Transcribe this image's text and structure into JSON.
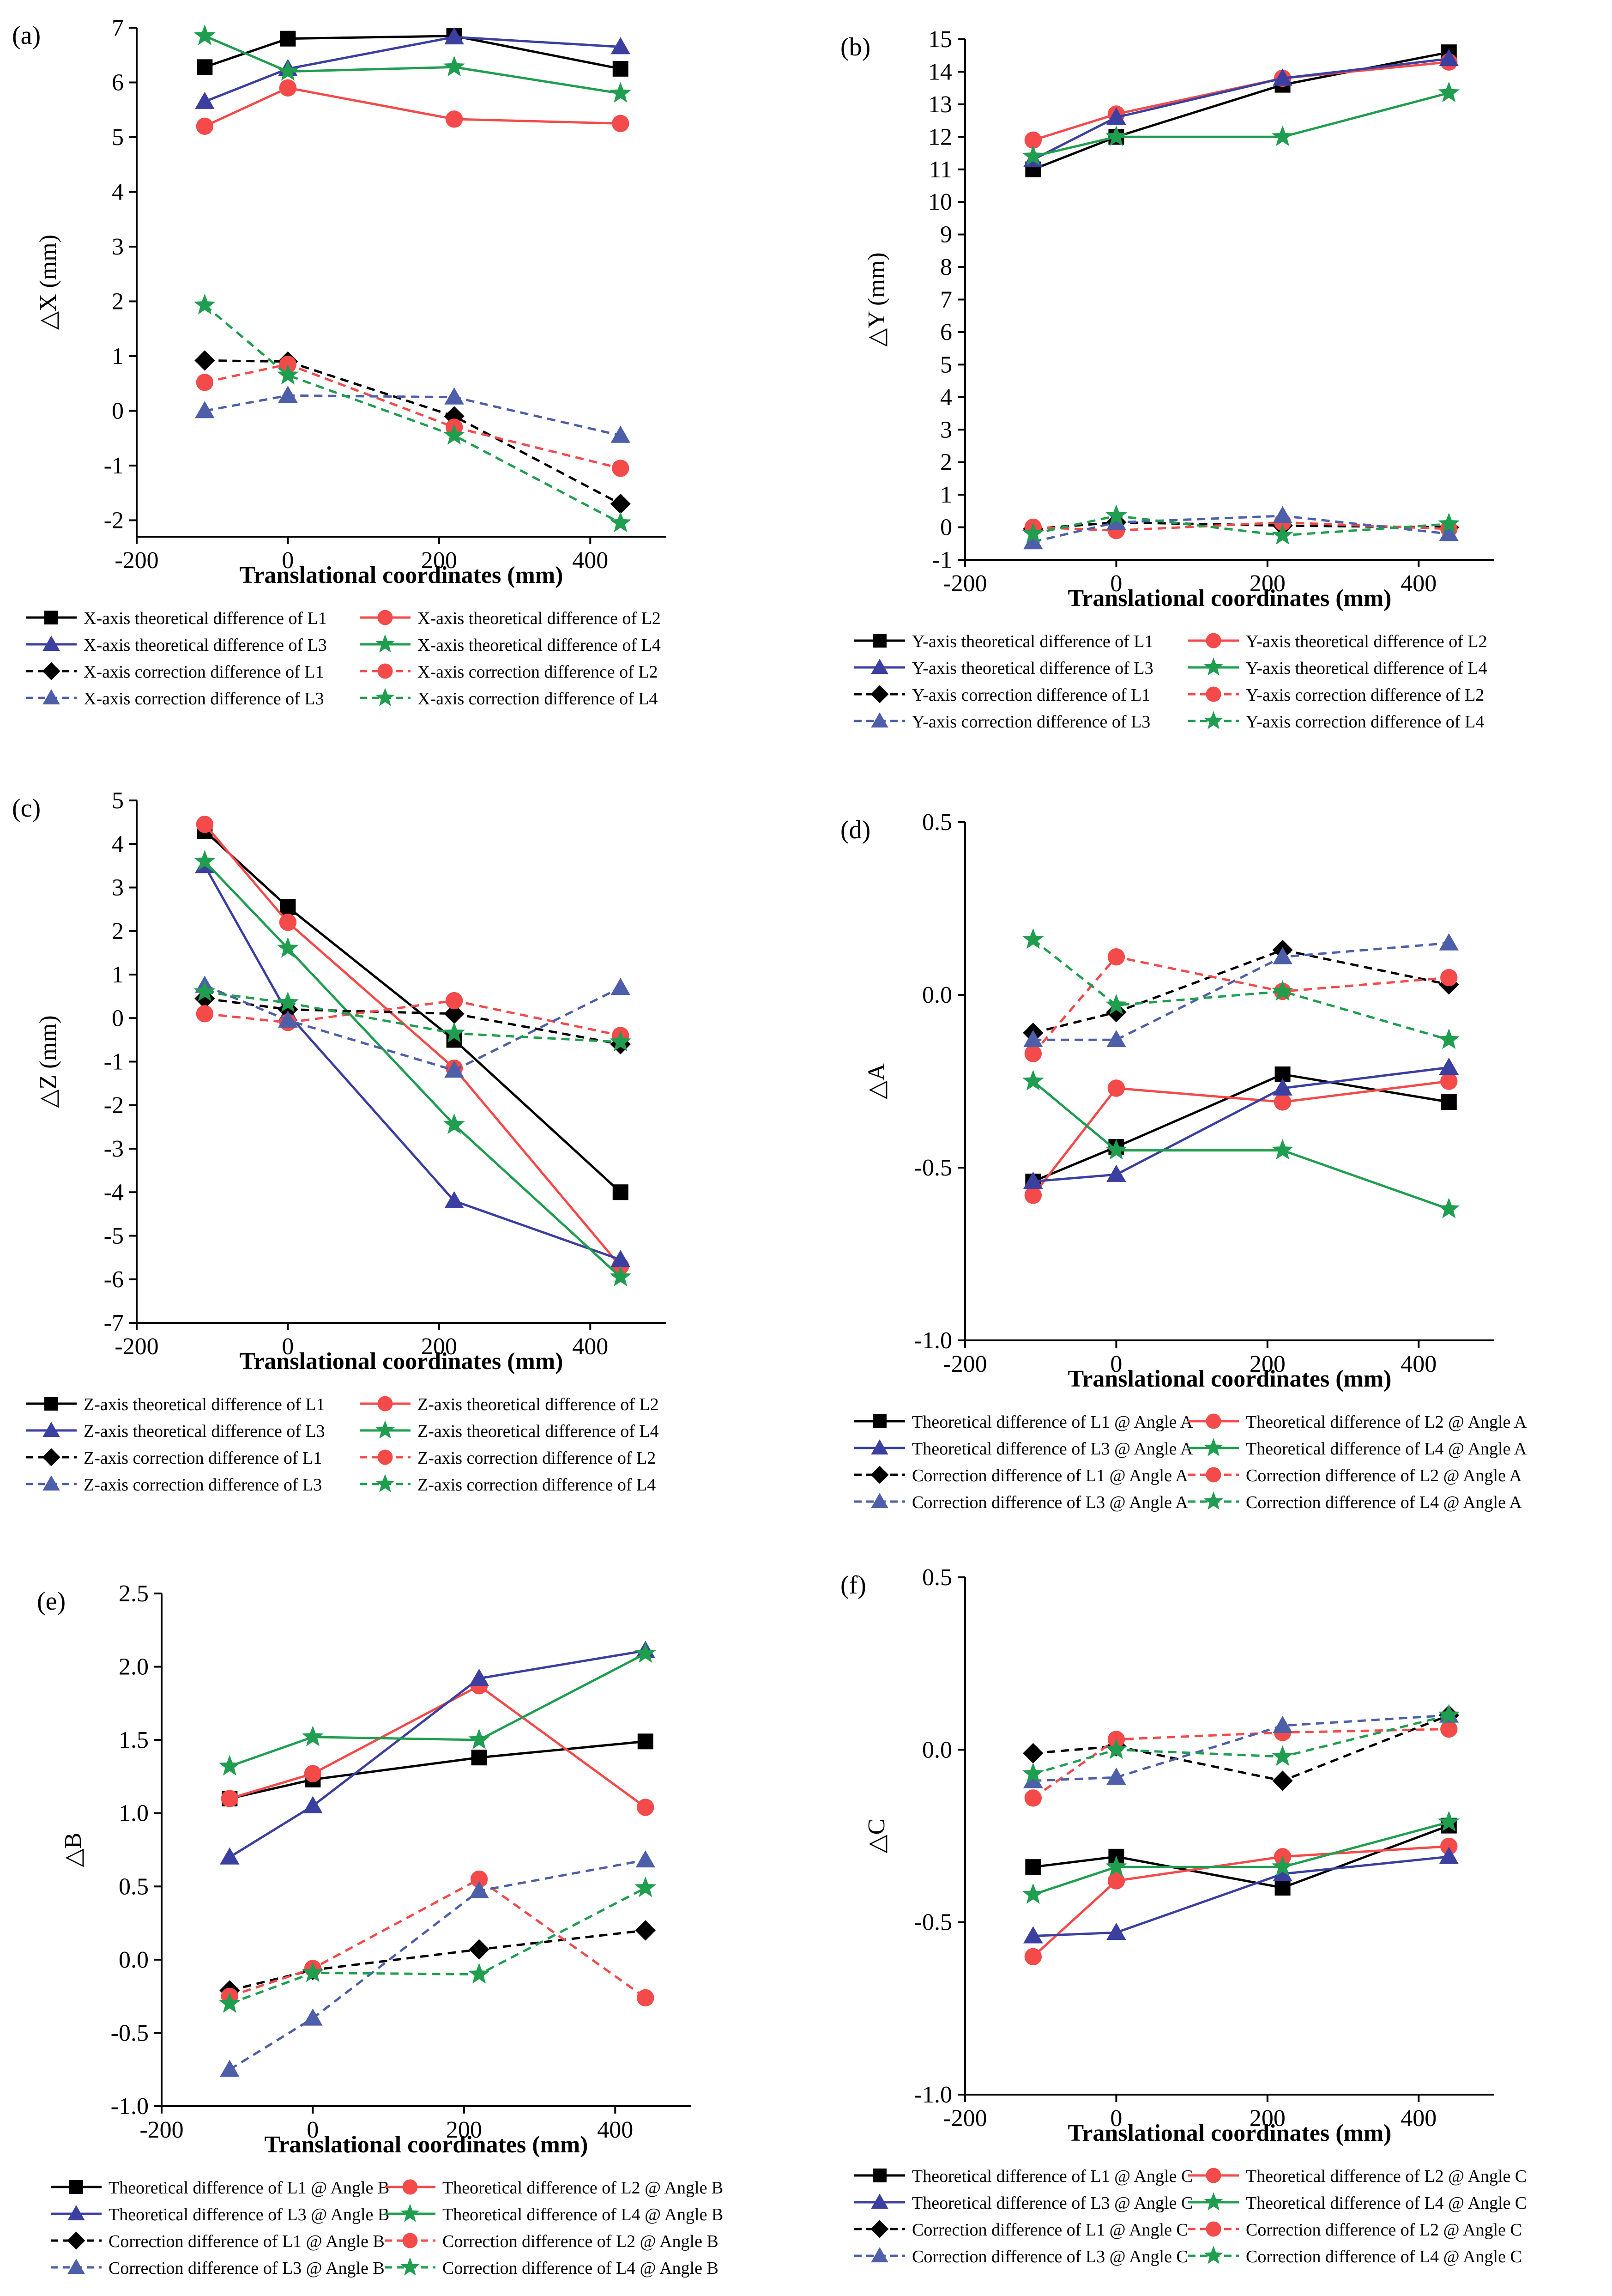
{
  "figure": {
    "style": {
      "black": "#000000",
      "red": "#f44a4a",
      "blue": "#3b3fa0",
      "green": "#1f9e4f",
      "dashed_blue": "#4d5fa8"
    },
    "x_values": [
      -110,
      0,
      220,
      440
    ]
  },
  "chart_data": [
    {
      "type": "line",
      "panel_label": "(a)",
      "xlabel": "Translational coordinates (mm)",
      "ylabel": "△X (mm)",
      "xlim": [
        -200,
        500
      ],
      "ylim": [
        -2.3,
        7
      ],
      "xticks": [
        -200,
        0,
        200,
        400
      ],
      "xtick_labels": [
        "-200",
        "0",
        "200",
        "400"
      ],
      "yticks": [
        -2,
        -1,
        0,
        1,
        2,
        3,
        4,
        5,
        6,
        7
      ],
      "ytick_labels": [
        "-2",
        "-1",
        "0",
        "1",
        "2",
        "3",
        "4",
        "5",
        "6",
        "7"
      ],
      "x": [
        -110,
        0,
        220,
        440
      ],
      "series": [
        {
          "name": "X-axis theoretical difference of L1",
          "values": [
            6.28,
            6.8,
            6.85,
            6.25
          ],
          "color": "#000000",
          "marker": "square",
          "dashed": false
        },
        {
          "name": "X-axis theoretical difference of L2",
          "values": [
            5.2,
            5.9,
            5.33,
            5.25
          ],
          "color": "#f44a4a",
          "marker": "circle",
          "dashed": false
        },
        {
          "name": "X-axis theoretical difference of L3",
          "values": [
            5.65,
            6.25,
            6.83,
            6.65
          ],
          "color": "#3b3fa0",
          "marker": "triangle",
          "dashed": false
        },
        {
          "name": "X-axis theoretical difference of L4",
          "values": [
            6.85,
            6.2,
            6.28,
            5.8
          ],
          "color": "#1f9e4f",
          "marker": "star",
          "dashed": false
        },
        {
          "name": "X-axis correction difference of L1",
          "values": [
            0.92,
            0.9,
            -0.1,
            -1.7
          ],
          "color": "#000000",
          "marker": "diamond",
          "dashed": true
        },
        {
          "name": "X-axis correction difference of L2",
          "values": [
            0.52,
            0.85,
            -0.3,
            -1.05
          ],
          "color": "#f44a4a",
          "marker": "circle",
          "dashed": true
        },
        {
          "name": "X-axis correction difference of L3",
          "values": [
            0.0,
            0.28,
            0.25,
            -0.45
          ],
          "color": "#4d5fa8",
          "marker": "triangle",
          "dashed": true
        },
        {
          "name": "X-axis correction difference of L4",
          "values": [
            1.93,
            0.65,
            -0.45,
            -2.05
          ],
          "color": "#1f9e4f",
          "marker": "star",
          "dashed": true
        }
      ]
    },
    {
      "type": "line",
      "panel_label": "(b)",
      "xlabel": "Translational coordinates (mm)",
      "ylabel": "△Y (mm)",
      "xlim": [
        -200,
        500
      ],
      "ylim": [
        -1,
        15
      ],
      "xticks": [
        -200,
        0,
        200,
        400
      ],
      "xtick_labels": [
        "-200",
        "0",
        "200",
        "400"
      ],
      "yticks": [
        -1,
        0,
        1,
        2,
        3,
        4,
        5,
        6,
        7,
        8,
        9,
        10,
        11,
        12,
        13,
        14,
        15
      ],
      "ytick_labels": [
        "-1",
        "0",
        "1",
        "2",
        "3",
        "4",
        "5",
        "6",
        "7",
        "8",
        "9",
        "10",
        "11",
        "12",
        "13",
        "14",
        "15"
      ],
      "x": [
        -110,
        0,
        220,
        440
      ],
      "series": [
        {
          "name": "Y-axis theoretical difference of L1",
          "values": [
            11.0,
            12.0,
            13.6,
            14.6
          ],
          "color": "#000000",
          "marker": "square",
          "dashed": false
        },
        {
          "name": "Y-axis theoretical difference of L2",
          "values": [
            11.9,
            12.7,
            13.8,
            14.3
          ],
          "color": "#f44a4a",
          "marker": "circle",
          "dashed": false
        },
        {
          "name": "Y-axis theoretical difference of L3",
          "values": [
            11.3,
            12.6,
            13.8,
            14.4
          ],
          "color": "#3b3fa0",
          "marker": "triangle",
          "dashed": false
        },
        {
          "name": "Y-axis theoretical difference of L4",
          "values": [
            11.4,
            12.0,
            12.0,
            13.35
          ],
          "color": "#1f9e4f",
          "marker": "star",
          "dashed": false
        },
        {
          "name": "Y-axis correction difference of L1",
          "values": [
            -0.05,
            0.15,
            0.05,
            0.0
          ],
          "color": "#000000",
          "marker": "diamond",
          "dashed": true
        },
        {
          "name": "Y-axis correction difference of L2",
          "values": [
            0.0,
            -0.1,
            0.15,
            -0.05
          ],
          "color": "#f44a4a",
          "marker": "circle",
          "dashed": true
        },
        {
          "name": "Y-axis correction difference of L3",
          "values": [
            -0.45,
            0.15,
            0.35,
            -0.2
          ],
          "color": "#4d5fa8",
          "marker": "triangle",
          "dashed": true
        },
        {
          "name": "Y-axis correction difference of L4",
          "values": [
            -0.2,
            0.35,
            -0.25,
            0.1
          ],
          "color": "#1f9e4f",
          "marker": "star",
          "dashed": true
        }
      ]
    },
    {
      "type": "line",
      "panel_label": "(c)",
      "xlabel": "Translational coordinates (mm)",
      "ylabel": "△Z (mm)",
      "xlim": [
        -200,
        500
      ],
      "ylim": [
        -7,
        5
      ],
      "xticks": [
        -200,
        0,
        200,
        400
      ],
      "xtick_labels": [
        "-200",
        "0",
        "200",
        "400"
      ],
      "yticks": [
        -7,
        -6,
        -5,
        -4,
        -3,
        -2,
        -1,
        0,
        1,
        2,
        3,
        4,
        5
      ],
      "ytick_labels": [
        "-7",
        "-6",
        "-5",
        "-4",
        "-3",
        "-2",
        "-1",
        "0",
        "1",
        "2",
        "3",
        "4",
        "5"
      ],
      "x": [
        -110,
        0,
        220,
        440
      ],
      "series": [
        {
          "name": "Z-axis theoretical difference of L1",
          "values": [
            4.3,
            2.55,
            -0.5,
            -4.0
          ],
          "color": "#000000",
          "marker": "square",
          "dashed": false
        },
        {
          "name": "Z-axis theoretical difference of L2",
          "values": [
            4.45,
            2.2,
            -1.15,
            -5.7
          ],
          "color": "#f44a4a",
          "marker": "circle",
          "dashed": false
        },
        {
          "name": "Z-axis theoretical difference of L3",
          "values": [
            3.5,
            0.1,
            -4.2,
            -5.55
          ],
          "color": "#3b3fa0",
          "marker": "triangle",
          "dashed": false
        },
        {
          "name": "Z-axis theoretical difference of L4",
          "values": [
            3.6,
            1.6,
            -2.45,
            -5.95
          ],
          "color": "#1f9e4f",
          "marker": "star",
          "dashed": false
        },
        {
          "name": "Z-axis correction difference of L1",
          "values": [
            0.45,
            0.2,
            0.1,
            -0.6
          ],
          "color": "#000000",
          "marker": "diamond",
          "dashed": true
        },
        {
          "name": "Z-axis correction difference of L2",
          "values": [
            0.1,
            -0.1,
            0.4,
            -0.4
          ],
          "color": "#f44a4a",
          "marker": "circle",
          "dashed": true
        },
        {
          "name": "Z-axis correction difference of L3",
          "values": [
            0.75,
            -0.05,
            -1.2,
            0.7
          ],
          "color": "#4d5fa8",
          "marker": "triangle",
          "dashed": true
        },
        {
          "name": "Z-axis correction difference of L4",
          "values": [
            0.6,
            0.35,
            -0.35,
            -0.55
          ],
          "color": "#1f9e4f",
          "marker": "star",
          "dashed": true
        }
      ]
    },
    {
      "type": "line",
      "panel_label": "(d)",
      "xlabel": "Translational coordinates (mm)",
      "ylabel": "△A",
      "xlim": [
        -200,
        500
      ],
      "ylim": [
        -1.0,
        0.5
      ],
      "xticks": [
        -200,
        0,
        200,
        400
      ],
      "xtick_labels": [
        "-200",
        "0",
        "200",
        "400"
      ],
      "yticks": [
        -1.0,
        -0.5,
        0.0,
        0.5
      ],
      "ytick_labels": [
        "-1.0",
        "-0.5",
        "0.0",
        "0.5"
      ],
      "x": [
        -110,
        0,
        220,
        440
      ],
      "series": [
        {
          "name": "Theoretical difference of L1 @ Angle A",
          "values": [
            -0.54,
            -0.44,
            -0.23,
            -0.31
          ],
          "color": "#000000",
          "marker": "square",
          "dashed": false
        },
        {
          "name": "Theoretical difference of L2 @ Angle A",
          "values": [
            -0.58,
            -0.27,
            -0.31,
            -0.25
          ],
          "color": "#f44a4a",
          "marker": "circle",
          "dashed": false
        },
        {
          "name": "Theoretical difference of L3 @ Angle A",
          "values": [
            -0.54,
            -0.52,
            -0.27,
            -0.21
          ],
          "color": "#3b3fa0",
          "marker": "triangle",
          "dashed": false
        },
        {
          "name": "Theoretical difference of L4 @ Angle A",
          "values": [
            -0.25,
            -0.45,
            -0.45,
            -0.62
          ],
          "color": "#1f9e4f",
          "marker": "star",
          "dashed": false
        },
        {
          "name": "Correction difference of L1 @ Angle A",
          "values": [
            -0.11,
            -0.05,
            0.13,
            0.03
          ],
          "color": "#000000",
          "marker": "diamond",
          "dashed": true
        },
        {
          "name": "Correction difference of L2 @ Angle A",
          "values": [
            -0.17,
            0.11,
            0.01,
            0.05
          ],
          "color": "#f44a4a",
          "marker": "circle",
          "dashed": true
        },
        {
          "name": "Correction difference of L3 @ Angle A",
          "values": [
            -0.13,
            -0.13,
            0.11,
            0.15
          ],
          "color": "#4d5fa8",
          "marker": "triangle",
          "dashed": true
        },
        {
          "name": "Correction difference of L4 @ Angle A",
          "values": [
            0.16,
            -0.03,
            0.01,
            -0.13
          ],
          "color": "#1f9e4f",
          "marker": "star",
          "dashed": true
        }
      ]
    },
    {
      "type": "line",
      "panel_label": "(e)",
      "xlabel": "Translational coordinates (mm)",
      "ylabel": "△B",
      "xlim": [
        -200,
        500
      ],
      "ylim": [
        -1.0,
        2.5
      ],
      "xticks": [
        -200,
        0,
        200,
        400
      ],
      "xtick_labels": [
        "-200",
        "0",
        "200",
        "400"
      ],
      "yticks": [
        -1.0,
        -0.5,
        0.0,
        0.5,
        1.0,
        1.5,
        2.0,
        2.5
      ],
      "ytick_labels": [
        "-1.0",
        "-0.5",
        "0.0",
        "0.5",
        "1.0",
        "1.5",
        "2.0",
        "2.5"
      ],
      "x": [
        -110,
        0,
        220,
        440
      ],
      "series": [
        {
          "name": "Theoretical difference of L1 @ Angle B",
          "values": [
            1.1,
            1.23,
            1.38,
            1.49
          ],
          "color": "#000000",
          "marker": "square",
          "dashed": false
        },
        {
          "name": "Theoretical difference of L2 @ Angle B",
          "values": [
            1.1,
            1.27,
            1.87,
            1.04
          ],
          "color": "#f44a4a",
          "marker": "circle",
          "dashed": false
        },
        {
          "name": "Theoretical difference of L3 @ Angle B",
          "values": [
            0.7,
            1.05,
            1.92,
            2.11
          ],
          "color": "#3b3fa0",
          "marker": "triangle",
          "dashed": false
        },
        {
          "name": "Theoretical difference of L4 @ Angle B",
          "values": [
            1.32,
            1.52,
            1.5,
            2.09
          ],
          "color": "#1f9e4f",
          "marker": "star",
          "dashed": false
        },
        {
          "name": "Correction difference of L1 @ Angle B",
          "values": [
            -0.21,
            -0.07,
            0.07,
            0.2
          ],
          "color": "#000000",
          "marker": "diamond",
          "dashed": true
        },
        {
          "name": "Correction difference of L2 @ Angle B",
          "values": [
            -0.25,
            -0.06,
            0.55,
            -0.26
          ],
          "color": "#f44a4a",
          "marker": "circle",
          "dashed": true
        },
        {
          "name": "Correction difference of L3 @ Angle B",
          "values": [
            -0.75,
            -0.4,
            0.47,
            0.68
          ],
          "color": "#4d5fa8",
          "marker": "triangle",
          "dashed": true
        },
        {
          "name": "Correction difference of L4 @ Angle B",
          "values": [
            -0.3,
            -0.09,
            -0.1,
            0.49
          ],
          "color": "#1f9e4f",
          "marker": "star",
          "dashed": true
        }
      ]
    },
    {
      "type": "line",
      "panel_label": "(f)",
      "xlabel": "Translational coordinates (mm)",
      "ylabel": "△C",
      "xlim": [
        -200,
        500
      ],
      "ylim": [
        -1.0,
        0.5
      ],
      "xticks": [
        -200,
        0,
        200,
        400
      ],
      "xtick_labels": [
        "-200",
        "0",
        "200",
        "400"
      ],
      "yticks": [
        -1.0,
        -0.5,
        0.0,
        0.5
      ],
      "ytick_labels": [
        "-1.0",
        "-0.5",
        "0.0",
        "0.5"
      ],
      "x": [
        -110,
        0,
        220,
        440
      ],
      "series": [
        {
          "name": "Theoretical difference of L1 @ Angle C",
          "values": [
            -0.34,
            -0.31,
            -0.4,
            -0.22
          ],
          "color": "#000000",
          "marker": "square",
          "dashed": false
        },
        {
          "name": "Theoretical difference of L2 @ Angle C",
          "values": [
            -0.6,
            -0.38,
            -0.31,
            -0.28
          ],
          "color": "#f44a4a",
          "marker": "circle",
          "dashed": false
        },
        {
          "name": "Theoretical difference of L3 @ Angle C",
          "values": [
            -0.54,
            -0.53,
            -0.36,
            -0.31
          ],
          "color": "#3b3fa0",
          "marker": "triangle",
          "dashed": false
        },
        {
          "name": "Theoretical difference of L4 @ Angle C",
          "values": [
            -0.42,
            -0.34,
            -0.34,
            -0.21
          ],
          "color": "#1f9e4f",
          "marker": "star",
          "dashed": false
        },
        {
          "name": "Correction difference of L1 @ Angle C",
          "values": [
            -0.01,
            0.01,
            -0.09,
            0.1
          ],
          "color": "#000000",
          "marker": "diamond",
          "dashed": true
        },
        {
          "name": "Correction difference of L2 @ Angle C",
          "values": [
            -0.14,
            0.03,
            0.05,
            0.06
          ],
          "color": "#f44a4a",
          "marker": "circle",
          "dashed": true
        },
        {
          "name": "Correction difference of L3 @ Angle C",
          "values": [
            -0.09,
            -0.08,
            0.07,
            0.1
          ],
          "color": "#4d5fa8",
          "marker": "triangle",
          "dashed": true
        },
        {
          "name": "Correction difference of L4 @ Angle C",
          "values": [
            -0.07,
            0.0,
            -0.02,
            0.1
          ],
          "color": "#1f9e4f",
          "marker": "star",
          "dashed": true
        }
      ]
    }
  ]
}
